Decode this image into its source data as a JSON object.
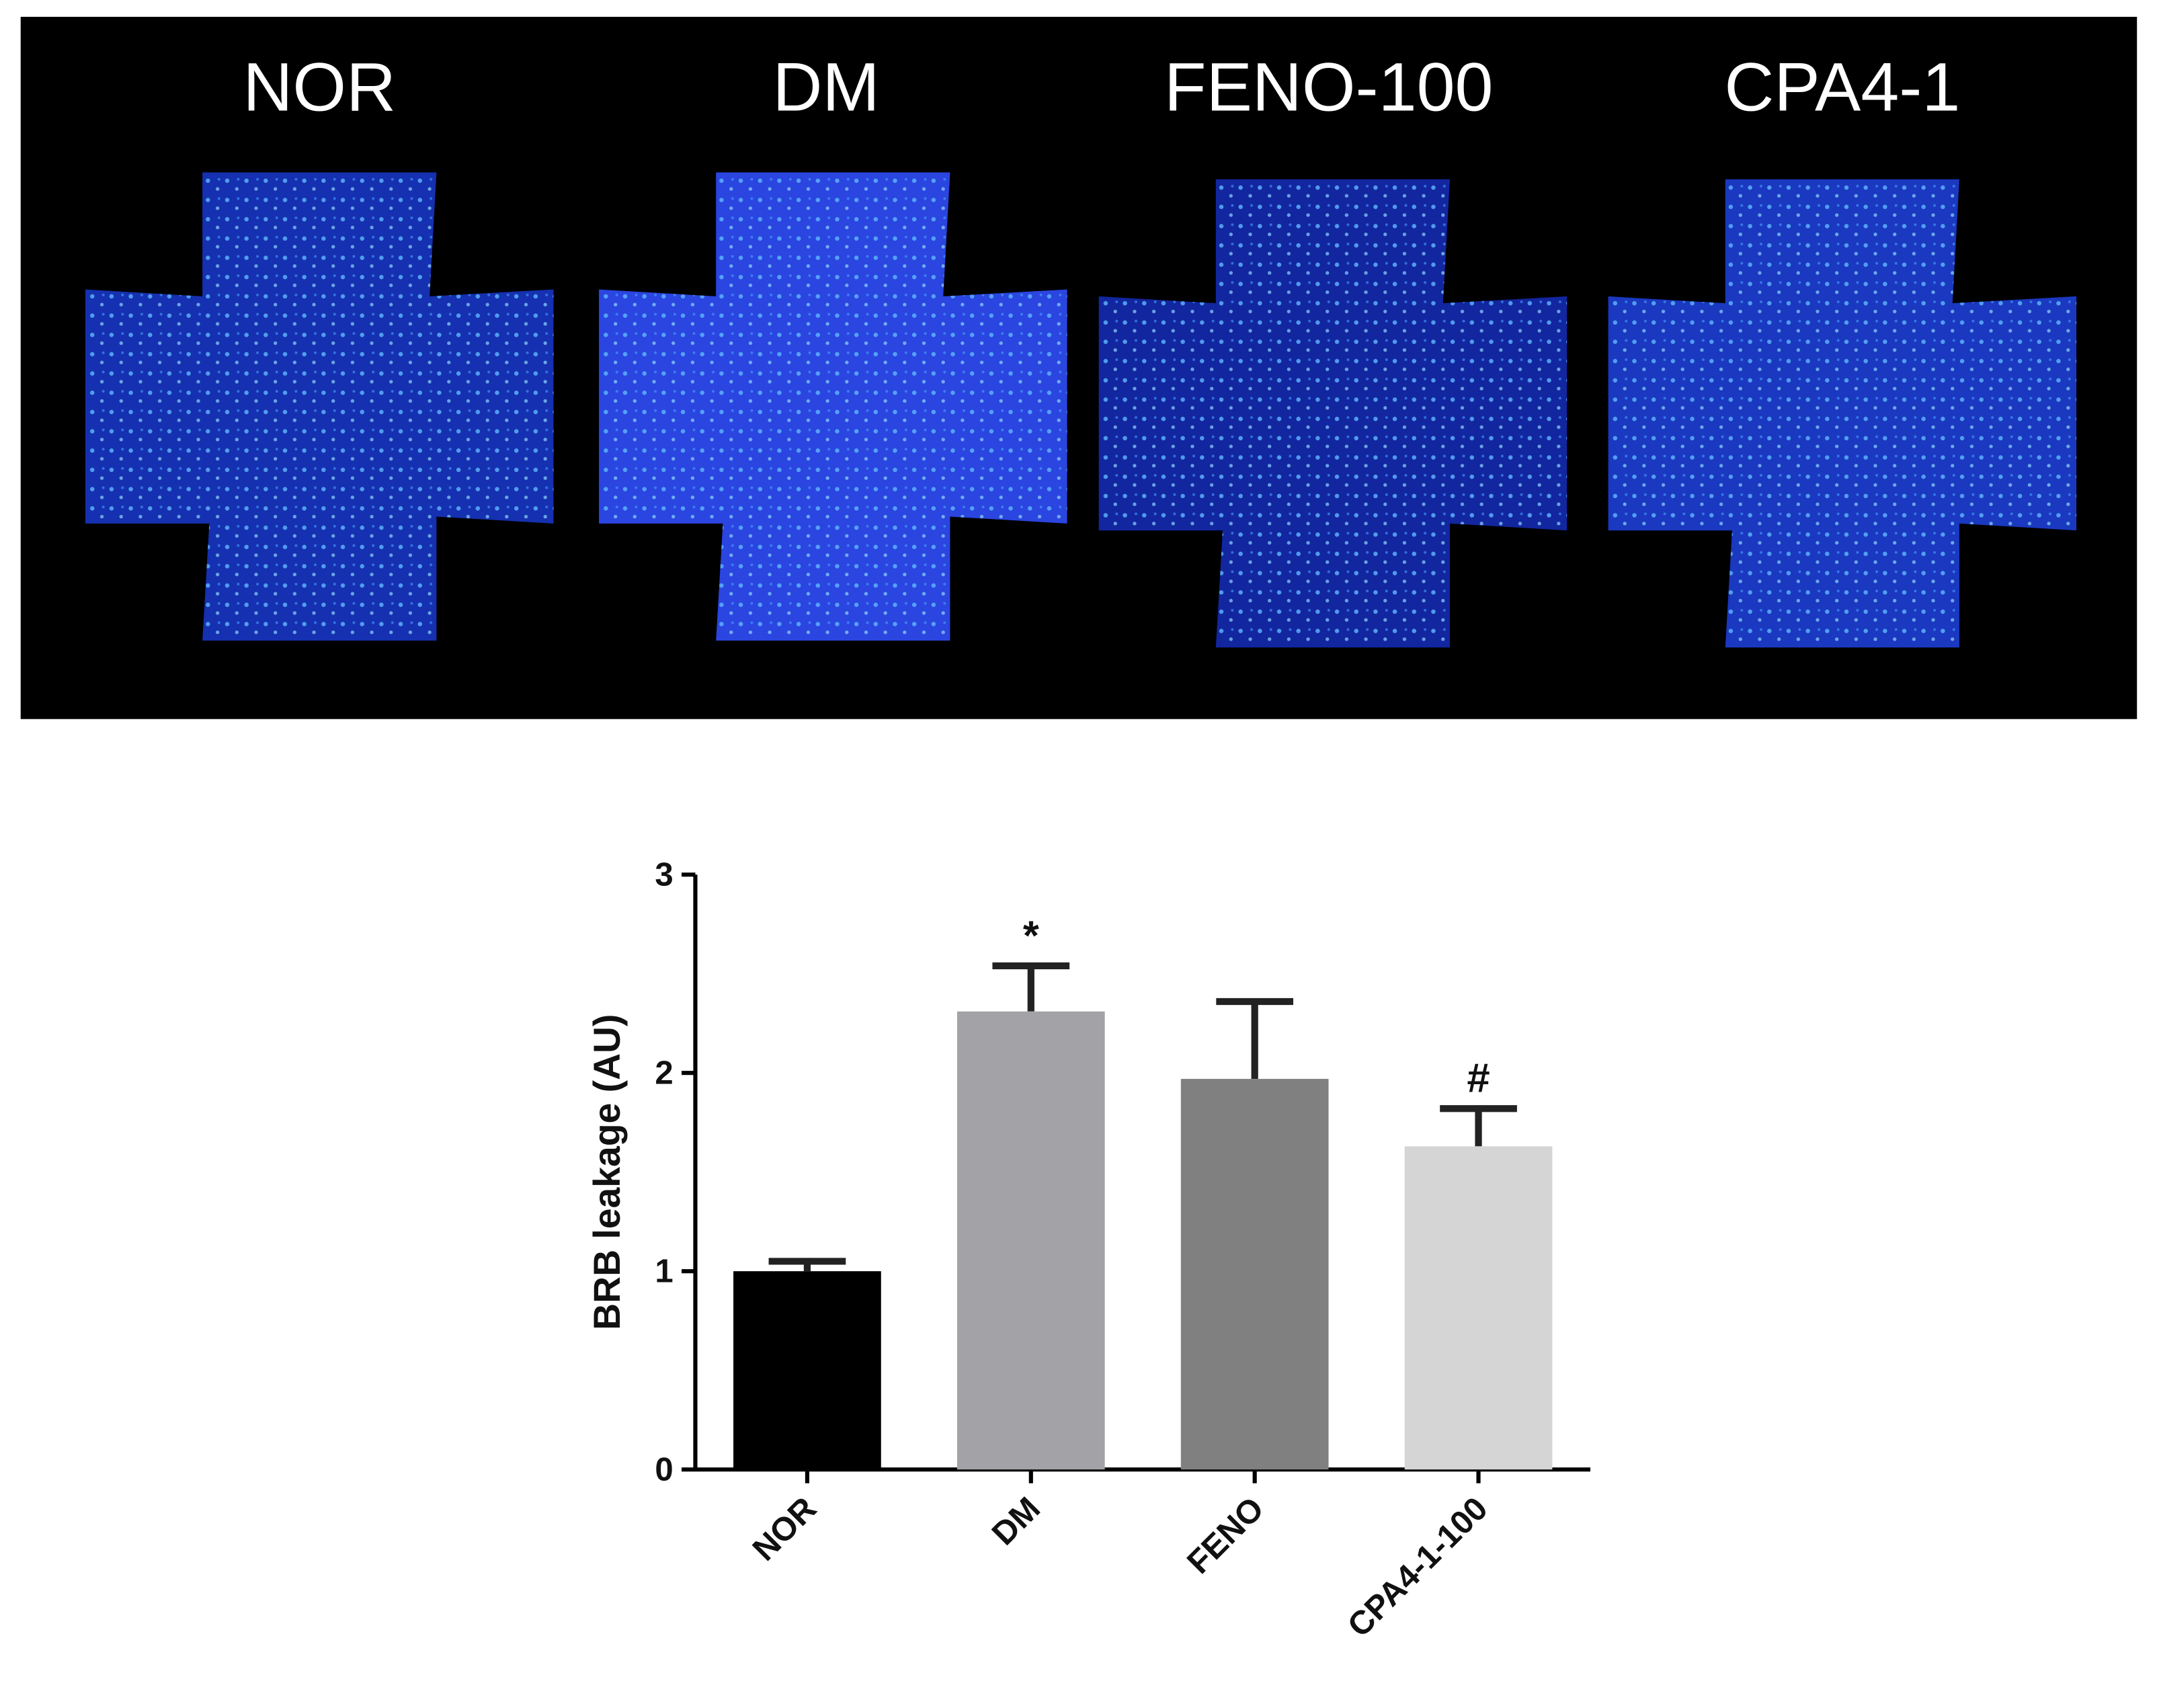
{
  "image_panel": {
    "labels": [
      "NOR",
      "DM",
      "FENO-100",
      "CPA4-1"
    ]
  },
  "chart_data": {
    "type": "bar",
    "y_label": "BRB leakage (AU)",
    "categories": [
      "NOR",
      "DM",
      "FENO",
      "CPA4-1-100"
    ],
    "values": [
      1.0,
      2.31,
      1.97,
      1.63
    ],
    "errors": [
      0.05,
      0.23,
      0.39,
      0.19
    ],
    "colors": [
      "#000000",
      "#a3a2a7",
      "#808080",
      "#d5d5d5"
    ],
    "annotations": [
      null,
      "*",
      null,
      "#"
    ],
    "ylim": [
      0,
      3
    ],
    "yticks": [
      0,
      1,
      2,
      3
    ],
    "grid": false
  }
}
